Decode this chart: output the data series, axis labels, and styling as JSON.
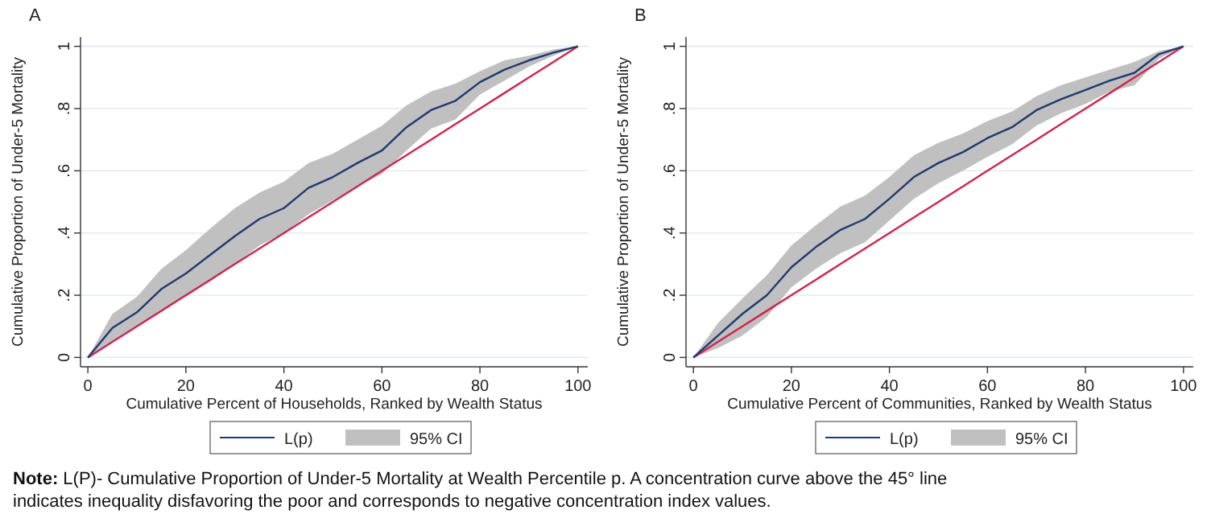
{
  "chart_data": [
    {
      "type": "line",
      "title": "A",
      "xlabel": "Cumulative Percent of Households, Ranked by Wealth Status",
      "ylabel": "Cumulative Proportion of Under-5 Mortality",
      "x": [
        0,
        5,
        10,
        15,
        20,
        25,
        30,
        35,
        40,
        45,
        50,
        55,
        60,
        65,
        70,
        75,
        80,
        85,
        90,
        95,
        100
      ],
      "xlim": [
        -1.5,
        102
      ],
      "ylim": [
        -0.03,
        1.03
      ],
      "xticks": [
        0,
        20,
        40,
        60,
        80,
        100
      ],
      "yticks": [
        {
          "value": 0,
          "label": "0"
        },
        {
          "value": 0.2,
          "label": ".2"
        },
        {
          "value": 0.4,
          "label": ".4"
        },
        {
          "value": 0.6,
          "label": ".6"
        },
        {
          "value": 0.8,
          "label": ".8"
        },
        {
          "value": 1,
          "label": "1"
        }
      ],
      "grid": "y",
      "legend": "bottom",
      "line_style": "solid",
      "marker": "none",
      "series": [
        {
          "name": "L(p)",
          "type": "line",
          "color": "#1f3a70",
          "values": [
            0,
            0.095,
            0.145,
            0.22,
            0.27,
            0.33,
            0.39,
            0.445,
            0.48,
            0.545,
            0.58,
            0.625,
            0.665,
            0.74,
            0.795,
            0.825,
            0.885,
            0.925,
            0.955,
            0.98,
            1
          ],
          "lower": [
            0,
            0.05,
            0.1,
            0.155,
            0.195,
            0.245,
            0.3,
            0.36,
            0.4,
            0.46,
            0.505,
            0.55,
            0.59,
            0.665,
            0.735,
            0.765,
            0.845,
            0.89,
            0.935,
            0.97,
            1
          ],
          "upper": [
            0,
            0.14,
            0.195,
            0.285,
            0.345,
            0.415,
            0.48,
            0.53,
            0.565,
            0.625,
            0.655,
            0.7,
            0.745,
            0.81,
            0.855,
            0.88,
            0.92,
            0.955,
            0.97,
            0.99,
            1
          ]
        },
        {
          "name": "95% CI",
          "type": "area",
          "color": "#c0c0c0",
          "values": [
            null,
            null,
            null,
            null,
            null,
            null,
            null,
            null,
            null,
            null,
            null,
            null,
            null,
            null,
            null,
            null,
            null,
            null,
            null,
            null,
            null
          ]
        },
        {
          "type": "line",
          "color": "#d0234e",
          "values": [
            0,
            0.05,
            0.1,
            0.15,
            0.2,
            0.25,
            0.3,
            0.35,
            0.4,
            0.45,
            0.5,
            0.55,
            0.6,
            0.65,
            0.7,
            0.75,
            0.8,
            0.85,
            0.9,
            0.95,
            1
          ]
        }
      ],
      "annotations": [
        "Note: L(P)- Cumulative Proportion of Under-5 Mortality at Wealth Percentile p. A concentration curve above the 45° line indicates inequality disfavoring the poor and corresponds to negative concentration index values."
      ]
    },
    {
      "type": "line",
      "title": "B",
      "xlabel": "Cumulative Percent of Communities, Ranked by Wealth Status",
      "ylabel": "Cumulative Proportion of Under-5 Mortality",
      "x": [
        0,
        5,
        10,
        15,
        20,
        25,
        30,
        35,
        40,
        45,
        50,
        55,
        60,
        65,
        70,
        75,
        80,
        85,
        90,
        95,
        100
      ],
      "xlim": [
        -1.5,
        102
      ],
      "ylim": [
        -0.03,
        1.03
      ],
      "xticks": [
        0,
        20,
        40,
        60,
        80,
        100
      ],
      "yticks": [
        {
          "value": 0,
          "label": "0"
        },
        {
          "value": 0.2,
          "label": ".2"
        },
        {
          "value": 0.4,
          "label": ".4"
        },
        {
          "value": 0.6,
          "label": ".6"
        },
        {
          "value": 0.8,
          "label": ".8"
        },
        {
          "value": 1,
          "label": "1"
        }
      ],
      "grid": "y",
      "legend": "bottom",
      "line_style": "solid",
      "marker": "none",
      "series": [
        {
          "name": "L(p)",
          "type": "line",
          "color": "#1f3a70",
          "values": [
            0,
            0.07,
            0.14,
            0.2,
            0.29,
            0.355,
            0.41,
            0.445,
            0.51,
            0.58,
            0.625,
            0.66,
            0.705,
            0.74,
            0.795,
            0.83,
            0.86,
            0.89,
            0.915,
            0.975,
            1
          ],
          "lower": [
            0,
            0.03,
            0.07,
            0.13,
            0.225,
            0.285,
            0.335,
            0.37,
            0.44,
            0.51,
            0.56,
            0.6,
            0.645,
            0.685,
            0.745,
            0.785,
            0.815,
            0.855,
            0.875,
            0.96,
            1
          ],
          "upper": [
            0,
            0.11,
            0.19,
            0.265,
            0.36,
            0.425,
            0.485,
            0.52,
            0.58,
            0.65,
            0.69,
            0.72,
            0.76,
            0.79,
            0.84,
            0.875,
            0.9,
            0.925,
            0.95,
            0.985,
            1
          ]
        },
        {
          "name": "95% CI",
          "type": "area",
          "color": "#c0c0c0",
          "values": [
            null,
            null,
            null,
            null,
            null,
            null,
            null,
            null,
            null,
            null,
            null,
            null,
            null,
            null,
            null,
            null,
            null,
            null,
            null,
            null,
            null
          ]
        },
        {
          "type": "line",
          "color": "#d0234e",
          "values": [
            0,
            0.05,
            0.1,
            0.15,
            0.2,
            0.25,
            0.3,
            0.35,
            0.4,
            0.45,
            0.5,
            0.55,
            0.6,
            0.65,
            0.7,
            0.75,
            0.8,
            0.85,
            0.9,
            0.95,
            1
          ]
        }
      ]
    }
  ]
}
